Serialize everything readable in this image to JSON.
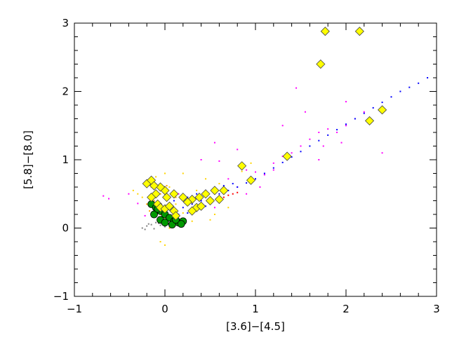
{
  "chart_data": {
    "type": "scatter",
    "title": "",
    "xlabel": "[3.6]−[4.5]",
    "ylabel": "[5.8]−[8.0]",
    "xlim": [
      -1,
      3
    ],
    "ylim": [
      -1,
      3
    ],
    "x_ticks": [
      "−1",
      "0",
      "1",
      "2",
      "3"
    ],
    "y_ticks": [
      "−1",
      "0",
      "1",
      "2",
      "3"
    ],
    "grid": false,
    "legend": "none",
    "series": [
      {
        "color": "#ff00ff",
        "marker": "dot",
        "values": [
          [
            -0.68,
            0.47
          ],
          [
            -0.62,
            0.43
          ],
          [
            -0.4,
            0.5
          ],
          [
            -0.3,
            0.36
          ],
          [
            -0.22,
            0.18
          ],
          [
            0.15,
            0.5
          ],
          [
            0.3,
            0.42
          ],
          [
            0.5,
            0.4
          ],
          [
            0.55,
            0.3
          ],
          [
            0.7,
            0.72
          ],
          [
            0.8,
            0.6
          ],
          [
            0.9,
            0.85
          ],
          [
            1.0,
            0.82
          ],
          [
            1.1,
            0.78
          ],
          [
            1.2,
            0.95
          ],
          [
            1.3,
            1.05
          ],
          [
            1.4,
            1.1
          ],
          [
            1.5,
            1.2
          ],
          [
            1.6,
            1.3
          ],
          [
            1.7,
            1.4
          ],
          [
            1.75,
            1.2
          ],
          [
            1.8,
            1.45
          ],
          [
            1.9,
            1.4
          ],
          [
            2.0,
            1.5
          ],
          [
            2.1,
            1.6
          ],
          [
            2.2,
            1.7
          ],
          [
            1.45,
            2.05
          ],
          [
            0.6,
            0.98
          ],
          [
            0.8,
            1.15
          ],
          [
            0.4,
            1.0
          ],
          [
            1.55,
            1.7
          ],
          [
            2.4,
            1.1
          ],
          [
            1.3,
            1.5
          ],
          [
            2.0,
            1.85
          ],
          [
            0.9,
            0.5
          ],
          [
            1.05,
            0.6
          ],
          [
            1.2,
            0.85
          ],
          [
            0.55,
            1.25
          ],
          [
            1.7,
            1.0
          ],
          [
            1.95,
            1.25
          ]
        ]
      },
      {
        "color": "#ffd400",
        "marker": "dot",
        "values": [
          [
            -0.35,
            0.55
          ],
          [
            -0.3,
            0.5
          ],
          [
            -0.15,
            0.72
          ],
          [
            -0.1,
            0.75
          ],
          [
            0.0,
            0.8
          ],
          [
            -0.05,
            0.1
          ],
          [
            0.05,
            0.0
          ],
          [
            0.1,
            0.15
          ],
          [
            0.2,
            0.22
          ],
          [
            0.4,
            0.35
          ],
          [
            0.5,
            0.12
          ],
          [
            0.55,
            0.2
          ],
          [
            -0.05,
            -0.2
          ],
          [
            0.0,
            -0.25
          ],
          [
            0.45,
            0.72
          ],
          [
            0.85,
            0.83
          ],
          [
            0.95,
            0.95
          ],
          [
            0.6,
            0.65
          ],
          [
            0.2,
            0.8
          ],
          [
            -0.25,
            0.45
          ],
          [
            0.35,
            0.55
          ],
          [
            0.3,
            0.1
          ],
          [
            0.7,
            0.3
          ],
          [
            0.05,
            0.6
          ],
          [
            0.12,
            0.35
          ]
        ]
      },
      {
        "color": "#ffa500",
        "marker": "dot",
        "values": [
          [
            -0.2,
            0.65
          ],
          [
            -0.15,
            0.6
          ],
          [
            -0.1,
            0.55
          ],
          [
            -0.05,
            0.5
          ],
          [
            0.0,
            0.45
          ],
          [
            -0.2,
            0.35
          ],
          [
            -0.1,
            0.28
          ],
          [
            -0.05,
            0.2
          ],
          [
            0.0,
            0.25
          ],
          [
            0.05,
            0.3
          ],
          [
            -0.15,
            0.45
          ],
          [
            -0.12,
            0.4
          ],
          [
            -0.08,
            0.35
          ],
          [
            -0.03,
            0.58
          ],
          [
            0.02,
            0.62
          ],
          [
            0.08,
            0.5
          ],
          [
            0.12,
            0.45
          ],
          [
            -0.17,
            0.25
          ],
          [
            -0.11,
            0.18
          ],
          [
            0.0,
            0.15
          ]
        ]
      },
      {
        "color": "#0000ff",
        "marker": "dot",
        "values": [
          [
            0.2,
            0.3
          ],
          [
            0.3,
            0.35
          ],
          [
            0.4,
            0.4
          ],
          [
            0.5,
            0.45
          ],
          [
            0.6,
            0.5
          ],
          [
            0.7,
            0.55
          ],
          [
            0.8,
            0.6
          ],
          [
            0.9,
            0.66
          ],
          [
            1.0,
            0.72
          ],
          [
            1.1,
            0.8
          ],
          [
            1.2,
            0.88
          ],
          [
            1.3,
            0.96
          ],
          [
            1.4,
            1.04
          ],
          [
            1.5,
            1.12
          ],
          [
            1.6,
            1.2
          ],
          [
            1.7,
            1.28
          ],
          [
            1.8,
            1.36
          ],
          [
            1.9,
            1.44
          ],
          [
            2.0,
            1.52
          ],
          [
            2.1,
            1.6
          ],
          [
            2.2,
            1.68
          ],
          [
            2.3,
            1.76
          ],
          [
            2.4,
            1.84
          ],
          [
            2.5,
            1.92
          ],
          [
            2.6,
            2.0
          ],
          [
            2.7,
            2.06
          ],
          [
            2.8,
            2.12
          ],
          [
            2.9,
            2.2
          ],
          [
            0.25,
            0.45
          ],
          [
            0.35,
            0.5
          ],
          [
            0.45,
            0.55
          ],
          [
            0.55,
            0.6
          ],
          [
            0.65,
            0.62
          ],
          [
            0.75,
            0.65
          ],
          [
            0.15,
            0.2
          ],
          [
            0.25,
            0.22
          ],
          [
            0.35,
            0.28
          ],
          [
            0.45,
            0.32
          ],
          [
            0.1,
            0.4
          ],
          [
            0.05,
            0.35
          ]
        ]
      },
      {
        "color": "#808080",
        "marker": "dot",
        "values": [
          [
            -0.25,
            0.0
          ],
          [
            -0.2,
            0.03
          ],
          [
            -0.15,
            0.05
          ],
          [
            -0.1,
            0.08
          ],
          [
            -0.05,
            0.04
          ],
          [
            0.0,
            0.02
          ],
          [
            -0.22,
            -0.02
          ],
          [
            -0.18,
            0.06
          ],
          [
            -0.12,
            -0.01
          ],
          [
            -0.07,
            0.07
          ]
        ]
      },
      {
        "color": "#009900",
        "marker": "circle",
        "values": [
          [
            -0.15,
            0.35
          ],
          [
            -0.1,
            0.3
          ],
          [
            -0.05,
            0.25
          ],
          [
            0.0,
            0.2
          ],
          [
            0.05,
            0.15
          ],
          [
            0.1,
            0.1
          ],
          [
            0.15,
            0.08
          ],
          [
            0.2,
            0.1
          ],
          [
            -0.12,
            0.2
          ],
          [
            -0.05,
            0.12
          ],
          [
            0.0,
            0.08
          ],
          [
            0.08,
            0.05
          ],
          [
            0.12,
            0.12
          ],
          [
            -0.08,
            0.28
          ],
          [
            0.18,
            0.06
          ]
        ]
      },
      {
        "color": "#ff0000",
        "marker": "dot",
        "values": [
          [
            0.7,
            0.48
          ],
          [
            0.75,
            0.5
          ],
          [
            0.8,
            0.52
          ],
          [
            0.65,
            0.45
          ]
        ]
      },
      {
        "color": "#ffff00",
        "marker": "diamond",
        "values": [
          [
            1.77,
            2.88
          ],
          [
            2.15,
            2.88
          ],
          [
            1.72,
            2.4
          ],
          [
            2.4,
            1.73
          ],
          [
            2.26,
            1.57
          ],
          [
            1.35,
            1.05
          ],
          [
            0.85,
            0.91
          ],
          [
            0.95,
            0.7
          ],
          [
            0.65,
            0.55
          ],
          [
            0.55,
            0.55
          ],
          [
            0.45,
            0.5
          ],
          [
            0.38,
            0.45
          ],
          [
            0.3,
            0.42
          ],
          [
            0.25,
            0.38
          ],
          [
            0.35,
            0.3
          ],
          [
            0.4,
            0.32
          ],
          [
            0.5,
            0.4
          ],
          [
            0.6,
            0.42
          ],
          [
            0.2,
            0.45
          ],
          [
            0.1,
            0.5
          ],
          [
            0.0,
            0.55
          ],
          [
            -0.05,
            0.6
          ],
          [
            -0.1,
            0.5
          ],
          [
            -0.15,
            0.45
          ],
          [
            -0.2,
            0.65
          ],
          [
            -0.15,
            0.7
          ],
          [
            -0.08,
            0.35
          ],
          [
            -0.05,
            0.3
          ],
          [
            0.0,
            0.28
          ],
          [
            0.05,
            0.32
          ],
          [
            0.1,
            0.25
          ],
          [
            0.12,
            0.18
          ],
          [
            -0.12,
            0.62
          ],
          [
            0.02,
            0.45
          ],
          [
            0.3,
            0.25
          ]
        ]
      }
    ]
  }
}
